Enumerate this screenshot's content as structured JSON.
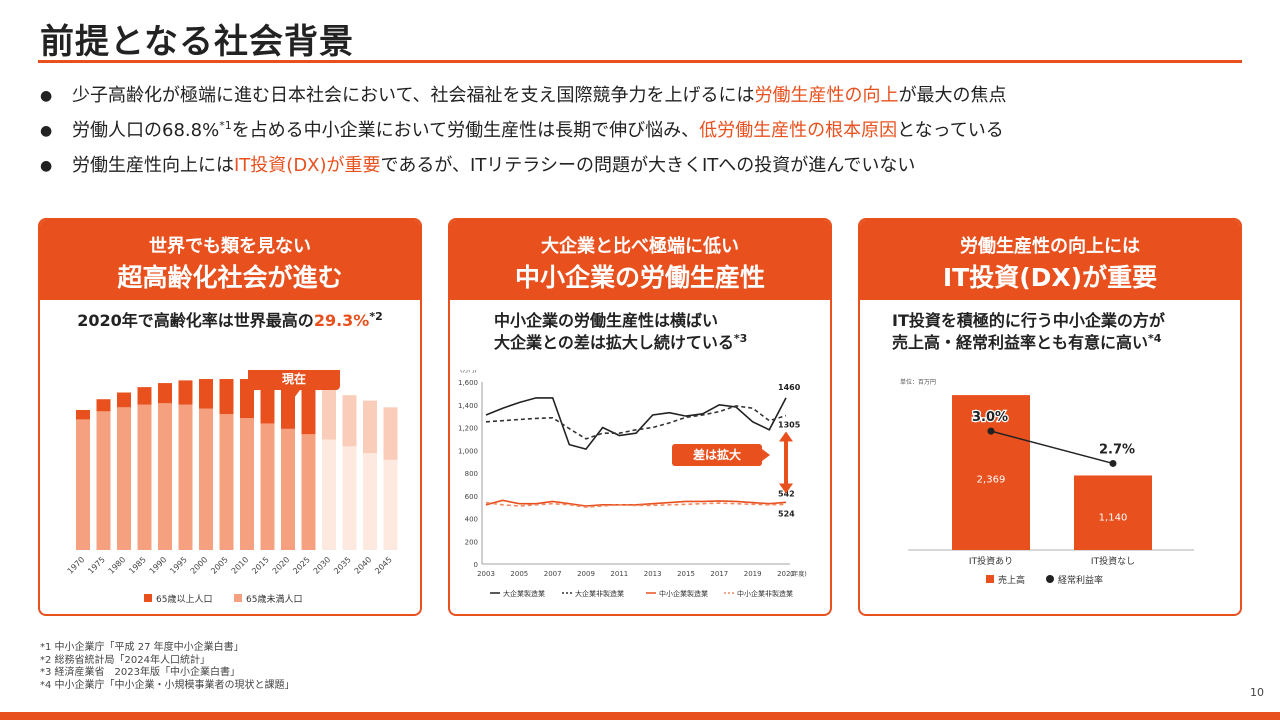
{
  "title": "前提となる社会背景",
  "colors": {
    "accent": "#e8501e",
    "text": "#222222"
  },
  "bullets": [
    {
      "parts": [
        {
          "text": "少子高齢化が極端に進む日本社会において、社会福祉を支え国際競争力を上げるには",
          "hl": false
        },
        {
          "text": "労働生産性の向上",
          "hl": true
        },
        {
          "text": "が最大の焦点",
          "hl": false
        }
      ]
    },
    {
      "parts": [
        {
          "text": "労働人口の68.8%",
          "hl": false
        },
        {
          "text": "*1",
          "hl": false,
          "sup": true
        },
        {
          "text": "を占める中小企業において労働生産性は長期で伸び悩み、",
          "hl": false
        },
        {
          "text": "低労働生産性の根本原因",
          "hl": true
        },
        {
          "text": "となっている",
          "hl": false
        }
      ]
    },
    {
      "parts": [
        {
          "text": "労働生産性向上には",
          "hl": false
        },
        {
          "text": "IT投資(DX)が重要",
          "hl": true
        },
        {
          "text": "であるが、ITリテラシーの問題が大きくITへの投資が進んでいない",
          "hl": false
        }
      ]
    }
  ],
  "cards": [
    {
      "head1": "世界でも類を見ない",
      "head2": "超高齢化社会が進む",
      "sub_a": "2020年で高齢化率は世界最高の",
      "sub_b": "29.3%",
      "sub_sup": "*2"
    },
    {
      "head1": "大企業と比べ極端に低い",
      "head2": "中小企業の労働生産性",
      "sub_l1": "中小企業の労働生産性は横ばい",
      "sub_l2": "大企業との差は拡大し続けている",
      "sub_sup": "*3"
    },
    {
      "head1": "労働生産性の向上には",
      "head2": "IT投資(DX)が重要",
      "sub_l1": "IT投資を積極的に行う中小企業の方が",
      "sub_l2": "売上高・経常利益率とも有意に高い",
      "sub_sup": "*4"
    }
  ],
  "footnotes": [
    "*1 中小企業庁「平成 27 年度中小企業白書」",
    "*2 総務省統計局「2024年人口統計」",
    "*3 経済産業省　2023年版「中小企業白書」",
    "*4 中小企業庁「中小企業・小規模事業者の現状と課題」"
  ],
  "page_number": "10",
  "chart_data": [
    {
      "type": "bar",
      "categories": [
        "1970",
        "1975",
        "1980",
        "1985",
        "1990",
        "1995",
        "2000",
        "2005",
        "2010",
        "2015",
        "2020",
        "2025",
        "2030",
        "2035",
        "2040",
        "2045"
      ],
      "series": [
        {
          "name": "65歳以上人口",
          "values": [
            7,
            9,
            11,
            13,
            15,
            18,
            22,
            26,
            29,
            33,
            36,
            37,
            37,
            38,
            39,
            39
          ]
        },
        {
          "name": "65歳未満人口",
          "values": [
            97,
            103,
            106,
            108,
            109,
            108,
            105,
            101,
            98,
            94,
            90,
            86,
            82,
            77,
            72,
            67
          ]
        }
      ],
      "projected_from": "2030",
      "callout": "現在",
      "colors": {
        "over65": "#e8501e",
        "under65": "#f5a07e",
        "over65_proj": "#f9cdb9",
        "under65_proj": "#fde9e0"
      },
      "ylim": [
        0,
        130
      ]
    },
    {
      "type": "line",
      "y_unit": "(万円)",
      "x_unit": "(年度)",
      "x": [
        2003,
        2004,
        2005,
        2006,
        2007,
        2008,
        2009,
        2010,
        2011,
        2012,
        2013,
        2014,
        2015,
        2016,
        2017,
        2018,
        2019,
        2020,
        2021
      ],
      "x_ticks": [
        "2003",
        "2005",
        "2007",
        "2009",
        "2011",
        "2013",
        "2015",
        "2017",
        "2019",
        "2021"
      ],
      "y_ticks": [
        "0",
        "200",
        "400",
        "600",
        "800",
        "1,000",
        "1,200",
        "1,400",
        "1,600"
      ],
      "ylim": [
        0,
        1600
      ],
      "series": [
        {
          "name": "大企業製造業",
          "values": [
            1310,
            1370,
            1420,
            1460,
            1460,
            1050,
            1010,
            1200,
            1130,
            1150,
            1310,
            1330,
            1300,
            1320,
            1400,
            1380,
            1250,
            1180,
            1460
          ],
          "color": "#222222",
          "dash": ""
        },
        {
          "name": "大企業非製造業",
          "values": [
            1250,
            1260,
            1270,
            1280,
            1285,
            1190,
            1100,
            1150,
            1150,
            1180,
            1200,
            1240,
            1290,
            1310,
            1340,
            1390,
            1370,
            1260,
            1305
          ],
          "color": "#333333",
          "dash": "4,3"
        },
        {
          "name": "中小企業製造業",
          "values": [
            520,
            560,
            530,
            530,
            550,
            530,
            510,
            520,
            520,
            520,
            530,
            540,
            550,
            550,
            555,
            550,
            540,
            530,
            542
          ],
          "color": "#e8501e",
          "dash": ""
        },
        {
          "name": "中小企業非製造業",
          "values": [
            540,
            520,
            510,
            520,
            530,
            520,
            500,
            510,
            520,
            515,
            515,
            520,
            525,
            530,
            535,
            530,
            525,
            520,
            524
          ],
          "color": "#f08a60",
          "dash": "4,3"
        }
      ],
      "labels": [
        {
          "text": "1460"
        },
        {
          "text": "1305"
        },
        {
          "text": "542"
        },
        {
          "text": "524"
        }
      ],
      "callout": "差は拡大"
    },
    {
      "type": "bar",
      "unit": "単位：百万円",
      "categories": [
        "IT投資あり",
        "IT投資なし"
      ],
      "series": [
        {
          "name": "売上高",
          "values": [
            2369,
            1140
          ],
          "labels": [
            "2,369",
            "1,140"
          ]
        },
        {
          "name": "経常利益率",
          "values": [
            3.0,
            2.7
          ],
          "labels": [
            "3.0%",
            "2.7%"
          ]
        }
      ],
      "ylim": [
        0,
        2600
      ]
    }
  ]
}
